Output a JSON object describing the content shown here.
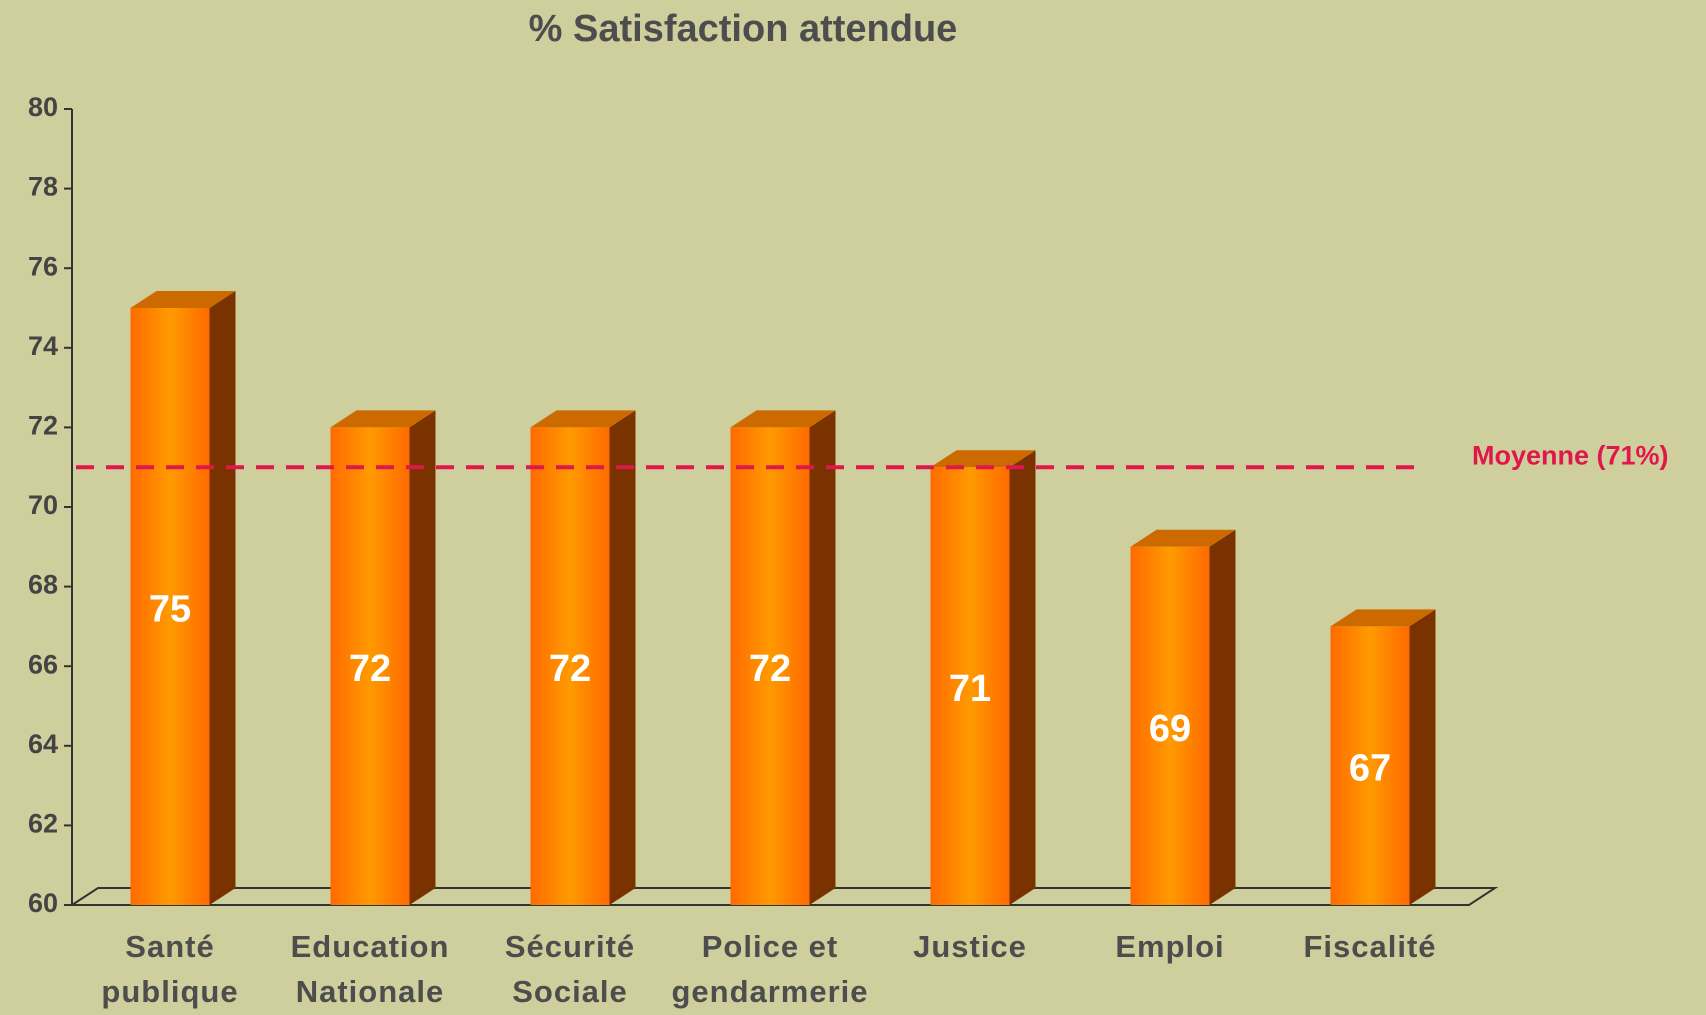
{
  "chart_data": {
    "type": "bar3d",
    "title": "% Satisfaction attendue",
    "categories": [
      [
        "Santé",
        "publique"
      ],
      [
        "Education",
        "Nationale"
      ],
      [
        "Sécurité",
        "Sociale"
      ],
      [
        "Police et",
        "gendarmerie"
      ],
      [
        "Justice"
      ],
      [
        "Emploi"
      ],
      [
        "Fiscalité"
      ]
    ],
    "values": [
      75,
      72,
      72,
      72,
      71,
      69,
      67
    ],
    "color": "#ff6a00",
    "ylim": [
      60,
      80
    ],
    "yticks": [
      60,
      62,
      64,
      66,
      68,
      70,
      72,
      74,
      76,
      78,
      80
    ],
    "average": {
      "value": 71,
      "label": "Moyenne (71%)",
      "color": "#e0174a"
    }
  }
}
